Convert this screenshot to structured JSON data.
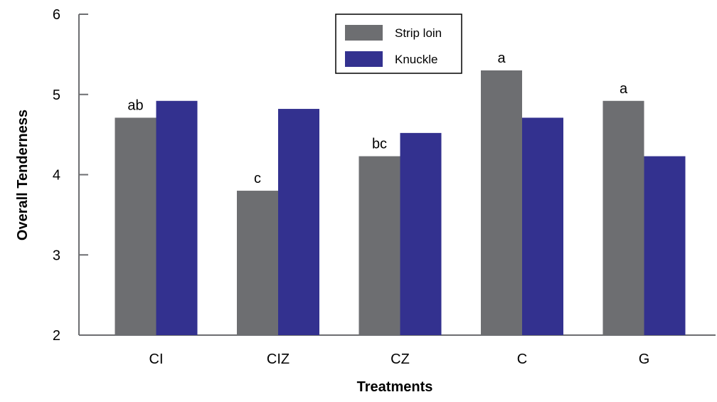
{
  "chart_data": {
    "type": "bar",
    "title": "",
    "xlabel": "Treatments",
    "ylabel": "Overall Tenderness",
    "categories": [
      "CI",
      "CIZ",
      "CZ",
      "C",
      "G"
    ],
    "ylim": [
      2,
      6
    ],
    "yticks": [
      2,
      3,
      4,
      5,
      6
    ],
    "grid": false,
    "legend": "top-center",
    "series": [
      {
        "name": "Strip loin",
        "color": "#6d6e71",
        "values": [
          4.71,
          3.8,
          4.23,
          5.3,
          4.92
        ]
      },
      {
        "name": "Knuckle",
        "color": "#33318f",
        "values": [
          4.92,
          4.82,
          4.52,
          4.71,
          4.23
        ]
      }
    ],
    "annotations": [
      {
        "category": "CI",
        "series": "Strip loin",
        "text": "ab"
      },
      {
        "category": "CIZ",
        "series": "Strip loin",
        "text": "c"
      },
      {
        "category": "CZ",
        "series": "Strip loin",
        "text": "bc"
      },
      {
        "category": "C",
        "series": "Strip loin",
        "text": "a"
      },
      {
        "category": "G",
        "series": "Strip loin",
        "text": "a"
      }
    ]
  }
}
